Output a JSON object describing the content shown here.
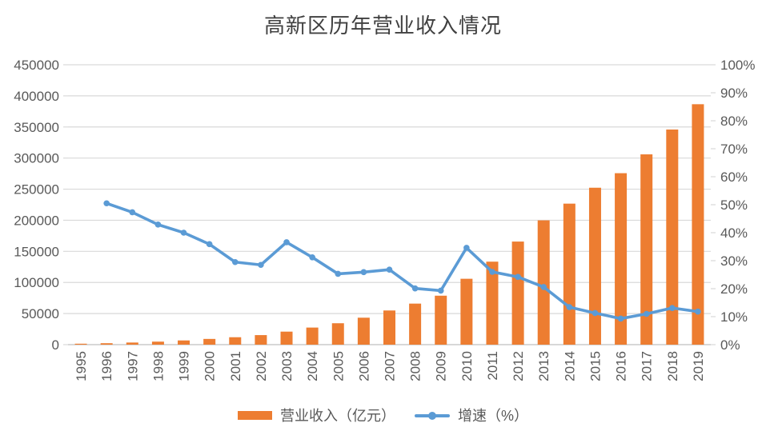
{
  "title": "高新区历年营业收入情况",
  "legend": {
    "revenue_label": "营业收入（亿元）",
    "growth_label": "增速（%）"
  },
  "colors": {
    "bar": "#ED7D31",
    "line": "#5B9BD5",
    "gridline": "#D9D9D9",
    "axis_line": "#BFBFBF",
    "axis_text": "#595959",
    "title_text": "#404040",
    "background": "#FFFFFF"
  },
  "chart_data": {
    "type": "bar",
    "subtype": "combo-bar-line-dual-axis",
    "title": "高新区历年营业收入情况",
    "grid": true,
    "legend_position": "bottom",
    "x_tick_rotation": 90,
    "categories": [
      "1995",
      "1996",
      "1997",
      "1998",
      "1999",
      "2000",
      "2001",
      "2002",
      "2003",
      "2004",
      "2005",
      "2006",
      "2007",
      "2008",
      "2009",
      "2010",
      "2011",
      "2012",
      "2013",
      "2014",
      "2015",
      "2016",
      "2017",
      "2018",
      "2019"
    ],
    "series": [
      {
        "name": "营业收入（亿元）",
        "type": "bar",
        "axis": "left",
        "color": "#ED7D31",
        "values": [
          1500,
          2300,
          3400,
          4840,
          6775,
          9210,
          11930,
          15330,
          20940,
          27470,
          34420,
          43320,
          54930,
          65990,
          78710,
          105920,
          133430,
          165740,
          199850,
          226720,
          252310,
          275680,
          305950,
          345900,
          386570
        ]
      },
      {
        "name": "增速（%）",
        "type": "line",
        "axis": "right",
        "color": "#5B9BD5",
        "values": [
          null,
          50.5,
          47.3,
          42.9,
          40.0,
          35.9,
          29.5,
          28.5,
          36.6,
          31.2,
          25.3,
          25.9,
          26.8,
          20.1,
          19.3,
          34.6,
          26.0,
          24.2,
          20.6,
          13.4,
          11.3,
          9.3,
          11.0,
          13.1,
          11.8
        ]
      }
    ],
    "left_axis": {
      "min": 0,
      "max": 450000,
      "step": 50000,
      "tick_labels": [
        "0",
        "50000",
        "100000",
        "150000",
        "200000",
        "250000",
        "300000",
        "350000",
        "400000",
        "450000"
      ]
    },
    "right_axis": {
      "min": 0,
      "max": 100,
      "step": 10,
      "tick_labels": [
        "0%",
        "10%",
        "20%",
        "30%",
        "40%",
        "50%",
        "60%",
        "70%",
        "80%",
        "90%",
        "100%"
      ]
    }
  }
}
